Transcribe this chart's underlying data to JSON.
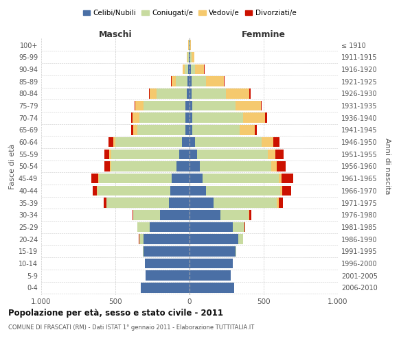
{
  "age_groups": [
    "0-4",
    "5-9",
    "10-14",
    "15-19",
    "20-24",
    "25-29",
    "30-34",
    "35-39",
    "40-44",
    "45-49",
    "50-54",
    "55-59",
    "60-64",
    "65-69",
    "70-74",
    "75-79",
    "80-84",
    "85-89",
    "90-94",
    "95-99",
    "100+"
  ],
  "birth_years": [
    "2006-2010",
    "2001-2005",
    "1996-2000",
    "1991-1995",
    "1986-1990",
    "1981-1985",
    "1976-1980",
    "1971-1975",
    "1966-1970",
    "1961-1965",
    "1956-1960",
    "1951-1955",
    "1946-1950",
    "1941-1945",
    "1936-1940",
    "1931-1935",
    "1926-1930",
    "1921-1925",
    "1916-1920",
    "1911-1915",
    "≤ 1910"
  ],
  "male": {
    "celibe": [
      330,
      295,
      300,
      310,
      310,
      270,
      200,
      140,
      130,
      120,
      90,
      70,
      50,
      30,
      30,
      30,
      20,
      12,
      8,
      5,
      2
    ],
    "coniugato": [
      0,
      0,
      0,
      5,
      30,
      80,
      180,
      420,
      490,
      490,
      440,
      460,
      450,
      320,
      310,
      280,
      200,
      80,
      25,
      8,
      3
    ],
    "vedovo": [
      0,
      0,
      0,
      0,
      0,
      1,
      1,
      2,
      3,
      5,
      5,
      10,
      15,
      30,
      45,
      55,
      50,
      30,
      15,
      5,
      2
    ],
    "divorziato": [
      0,
      0,
      0,
      0,
      1,
      2,
      5,
      18,
      30,
      45,
      40,
      35,
      30,
      12,
      10,
      5,
      5,
      3,
      0,
      0,
      0
    ]
  },
  "female": {
    "nubile": [
      300,
      280,
      290,
      310,
      330,
      290,
      210,
      160,
      110,
      90,
      70,
      50,
      35,
      20,
      20,
      20,
      15,
      12,
      8,
      5,
      3
    ],
    "coniugata": [
      0,
      0,
      0,
      5,
      30,
      80,
      190,
      430,
      500,
      510,
      480,
      480,
      450,
      320,
      340,
      290,
      230,
      100,
      30,
      8,
      2
    ],
    "vedova": [
      0,
      0,
      0,
      0,
      1,
      2,
      5,
      10,
      15,
      20,
      40,
      50,
      80,
      100,
      150,
      170,
      160,
      120,
      60,
      20,
      5
    ],
    "divorziata": [
      0,
      0,
      0,
      0,
      1,
      3,
      10,
      30,
      60,
      80,
      60,
      55,
      40,
      15,
      12,
      8,
      5,
      3,
      2,
      1,
      0
    ]
  },
  "colors": {
    "celibe": "#4a6fa5",
    "coniugato": "#c8dba0",
    "vedovo": "#f5c96e",
    "divorziato": "#cc1100"
  },
  "xlim": 1000,
  "title": "Popolazione per età, sesso e stato civile - 2011",
  "subtitle": "COMUNE DI FRASCATI (RM) - Dati ISTAT 1° gennaio 2011 - Elaborazione TUTTITALIA.IT",
  "ylabel_left": "Fasce di età",
  "ylabel_right": "Anni di nascita",
  "xlabel_left": "Maschi",
  "xlabel_right": "Femmine",
  "bg_color": "#ffffff",
  "grid_color": "#cccccc"
}
